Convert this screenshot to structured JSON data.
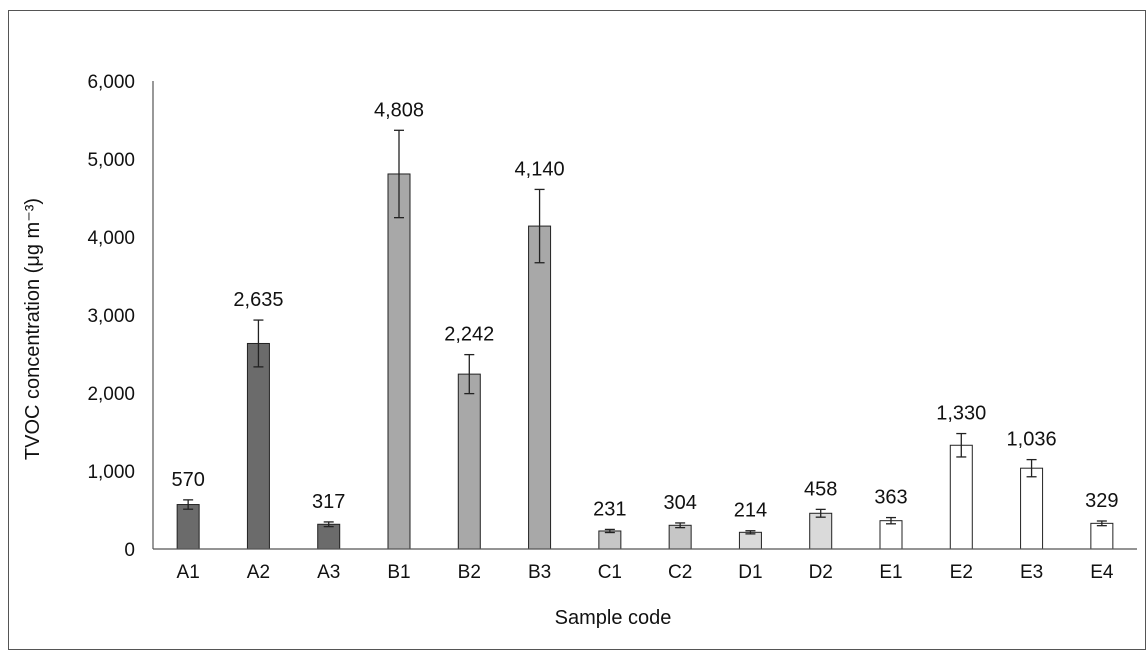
{
  "chart_data": {
    "type": "bar",
    "xlabel": "Sample code",
    "ylabel": "TVOC concentration (μg m⁻³)",
    "ylim": [
      0,
      6000
    ],
    "yticks": [
      0,
      1000,
      2000,
      3000,
      4000,
      5000,
      6000
    ],
    "ytick_labels": [
      "0",
      "1,000",
      "2,000",
      "3,000",
      "4,000",
      "5,000",
      "6,000"
    ],
    "grid": false,
    "legend": "none",
    "categories": [
      "A1",
      "A2",
      "A3",
      "B1",
      "B2",
      "B3",
      "C1",
      "C2",
      "D1",
      "D2",
      "E1",
      "E2",
      "E3",
      "E4"
    ],
    "values": [
      570,
      2635,
      317,
      4808,
      2242,
      4140,
      231,
      304,
      214,
      458,
      363,
      1330,
      1036,
      329
    ],
    "value_labels": [
      "570",
      "2,635",
      "317",
      "4,808",
      "2,242",
      "4,140",
      "231",
      "304",
      "214",
      "458",
      "363",
      "1,330",
      "1,036",
      "329"
    ],
    "error": [
      60,
      300,
      30,
      560,
      250,
      470,
      20,
      30,
      20,
      50,
      40,
      150,
      110,
      30
    ],
    "bar_colors": [
      "#6b6b6b",
      "#6b6b6b",
      "#6b6b6b",
      "#a8a8a8",
      "#a8a8a8",
      "#a8a8a8",
      "#c6c6c6",
      "#c6c6c6",
      "#dadada",
      "#dadada",
      "#ffffff",
      "#ffffff",
      "#ffffff",
      "#ffffff"
    ],
    "axis_color": "#555555",
    "bar_edge_color": "#222222"
  }
}
